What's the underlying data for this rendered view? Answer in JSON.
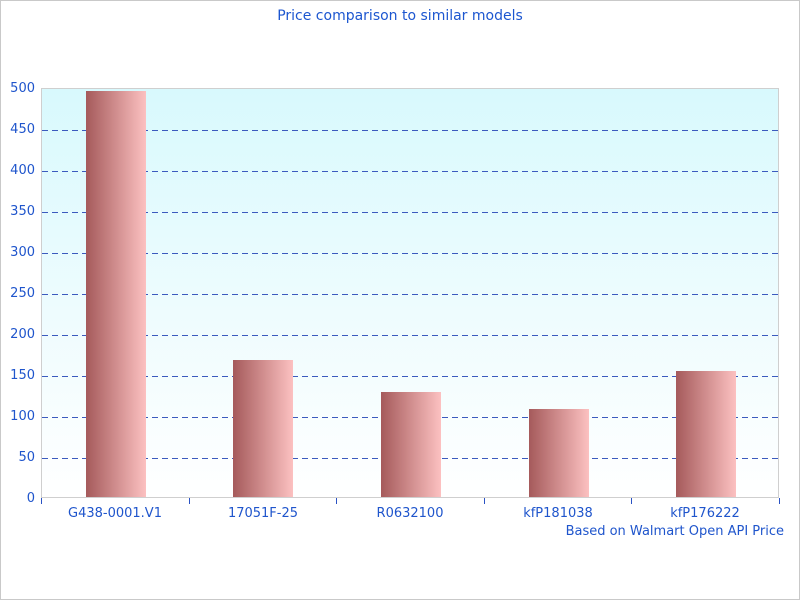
{
  "chart_data": {
    "type": "bar",
    "title": "Price comparison to similar models",
    "categories": [
      "G438-0001.V1",
      "17051F-25",
      "R0632100",
      "kfP181038",
      "kfP176222"
    ],
    "values": [
      495,
      167,
      128,
      107,
      154
    ],
    "xlabel": "",
    "ylabel": "",
    "ylim": [
      0,
      500
    ],
    "ytick_step": 50,
    "grid": "horizontal-dashed",
    "legend_position": "none",
    "annotation": "Based on Walmart Open API Price",
    "colors": {
      "title_text": "#1c56d0",
      "axis_text": "#1f55cc",
      "gridline": "#3b5abe",
      "tick": "#2a52c4",
      "plot_bg_top": "#d8f9fd",
      "plot_bg_bottom": "#ffffff",
      "bar_gradient_left": "#a55a5b",
      "bar_gradient_right": "#fcc1c1",
      "plot_border": "#cfcfcf"
    }
  }
}
